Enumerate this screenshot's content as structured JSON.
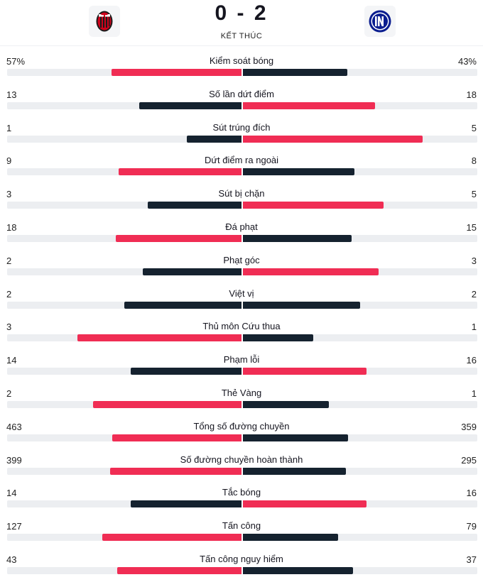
{
  "match": {
    "score": "0 - 2",
    "status": "KẾT THÚC"
  },
  "teams": {
    "home": {
      "crest_icon": "ac-milan-crest-icon"
    },
    "away": {
      "crest_icon": "inter-milan-crest-icon"
    }
  },
  "colors": {
    "winner": "#f02d54",
    "loser": "#15222f",
    "track": "#eceef1"
  },
  "stats": [
    {
      "label": "Kiểm soát bóng",
      "home": "57%",
      "away": "43%",
      "home_value": 57,
      "away_value": 43,
      "winner": "home"
    },
    {
      "label": "Số lần dứt điểm",
      "home": "13",
      "away": "18",
      "home_value": 13,
      "away_value": 18,
      "winner": "away"
    },
    {
      "label": "Sút trúng đích",
      "home": "1",
      "away": "5",
      "home_value": 1,
      "away_value": 5,
      "winner": "away"
    },
    {
      "label": "Dứt điểm ra ngoài",
      "home": "9",
      "away": "8",
      "home_value": 9,
      "away_value": 8,
      "winner": "home"
    },
    {
      "label": "Sút bị chặn",
      "home": "3",
      "away": "5",
      "home_value": 3,
      "away_value": 5,
      "winner": "away"
    },
    {
      "label": "Đá phạt",
      "home": "18",
      "away": "15",
      "home_value": 18,
      "away_value": 15,
      "winner": "home"
    },
    {
      "label": "Phạt góc",
      "home": "2",
      "away": "3",
      "home_value": 2,
      "away_value": 3,
      "winner": "away"
    },
    {
      "label": "Việt vị",
      "home": "2",
      "away": "2",
      "home_value": 2,
      "away_value": 2,
      "winner": "none"
    },
    {
      "label": "Thủ môn Cứu thua",
      "home": "3",
      "away": "1",
      "home_value": 3,
      "away_value": 1,
      "winner": "home"
    },
    {
      "label": "Phạm lỗi",
      "home": "14",
      "away": "16",
      "home_value": 14,
      "away_value": 16,
      "winner": "away"
    },
    {
      "label": "Thẻ Vàng",
      "home": "2",
      "away": "1",
      "home_value": 2,
      "away_value": 1,
      "winner": "home"
    },
    {
      "label": "Tổng số đường chuyền",
      "home": "463",
      "away": "359",
      "home_value": 463,
      "away_value": 359,
      "winner": "home"
    },
    {
      "label": "Số đường chuyền hoàn thành",
      "home": "399",
      "away": "295",
      "home_value": 399,
      "away_value": 295,
      "winner": "home"
    },
    {
      "label": "Tắc bóng",
      "home": "14",
      "away": "16",
      "home_value": 14,
      "away_value": 16,
      "winner": "away"
    },
    {
      "label": "Tấn công",
      "home": "127",
      "away": "79",
      "home_value": 127,
      "away_value": 79,
      "winner": "home"
    },
    {
      "label": "Tấn công nguy hiểm",
      "home": "43",
      "away": "37",
      "home_value": 43,
      "away_value": 37,
      "winner": "home"
    }
  ]
}
